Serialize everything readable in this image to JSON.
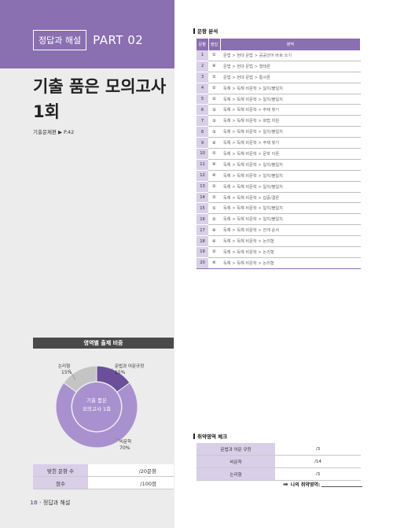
{
  "header": {
    "badge": "정답과 해설",
    "part": "PART 02"
  },
  "title": {
    "line1": "기출 품은 모의고사",
    "line2": "1회"
  },
  "source_ref": "기출문제편 ▶ P.42",
  "analysis": {
    "title": "문항 분석",
    "columns": [
      "문항",
      "정답",
      "영역"
    ],
    "rows": [
      [
        "1",
        "①",
        "문법 > 현대 문법 > 공공언어 바로 쓰기"
      ],
      [
        "2",
        "④",
        "문법 > 현대 문법 > 형태론"
      ],
      [
        "3",
        "②",
        "문법 > 현대 문법 > 통사론"
      ],
      [
        "4",
        "①",
        "독해 > 독해 비문학 > 일치/불일치"
      ],
      [
        "5",
        "②",
        "독해 > 독해 비문학 > 일치/불일치"
      ],
      [
        "6",
        "③",
        "독해 > 독해 비문학 > 주제 찾기"
      ],
      [
        "7",
        "③",
        "독해 > 독해 비문학 > 화법 차원"
      ],
      [
        "8",
        "③",
        "독해 > 독해 비문학 > 일치/불일치"
      ],
      [
        "9",
        "④",
        "독해 > 독해 비문학 > 주제 찾기"
      ],
      [
        "10",
        "②",
        "독해 > 독해 비문학 > 문학 이론"
      ],
      [
        "11",
        "④",
        "독해 > 독해 비문학 > 일치/불일치"
      ],
      [
        "12",
        "④",
        "독해 > 독해 비문학 > 일치/불일치"
      ],
      [
        "13",
        "①",
        "독해 > 독해 비문학 > 일치/불일치"
      ],
      [
        "14",
        "②",
        "독해 > 독해 비문학 > 집중/결론"
      ],
      [
        "15",
        "①",
        "독해 > 독해 비문학 > 일치/불일치"
      ],
      [
        "16",
        "②",
        "독해 > 독해 비문학 > 일치/불일치"
      ],
      [
        "17",
        "④",
        "독해 > 독해 비문학 > 전개 순서"
      ],
      [
        "18",
        "④",
        "독해 > 독해 비문학 > 논리형"
      ],
      [
        "19",
        "②",
        "독해 > 독해 비문학 > 논리형"
      ],
      [
        "20",
        "④",
        "독해 > 독해 비문학 > 논리형"
      ]
    ]
  },
  "donut": {
    "heading": "영역별 출제 비중",
    "center_line1": "기출 품은",
    "center_line2": "모의고사 1회",
    "colors": {
      "grammar": "#6b4f9a",
      "reading": "#a991cf",
      "logic": "#c4c4c4"
    },
    "labels": {
      "logic_name": "논리형",
      "logic_pct": "15%",
      "grammar_name": "문법과 어문규정",
      "grammar_pct": "15%",
      "reading_name": "비문학",
      "reading_pct": "70%"
    }
  },
  "chart_data": {
    "type": "pie",
    "title": "영역별 출제 비중",
    "categories": [
      "문법과 어문규정",
      "비문학",
      "논리형"
    ],
    "values": [
      15,
      70,
      15
    ]
  },
  "score": {
    "correct_label": "맞힌 문항 수",
    "correct_value": "/20문항",
    "score_label": "점수",
    "score_value": "/100점"
  },
  "weak": {
    "title": "취약영역 체크",
    "rows": [
      {
        "label": "문법과 어문 규정",
        "value": "/3"
      },
      {
        "label": "비문학",
        "value": "/14"
      },
      {
        "label": "논리형",
        "value": "/3"
      }
    ],
    "my_weak": "나의 취약영역:"
  },
  "footer": {
    "page": "18",
    "label": "정답과 해설"
  }
}
